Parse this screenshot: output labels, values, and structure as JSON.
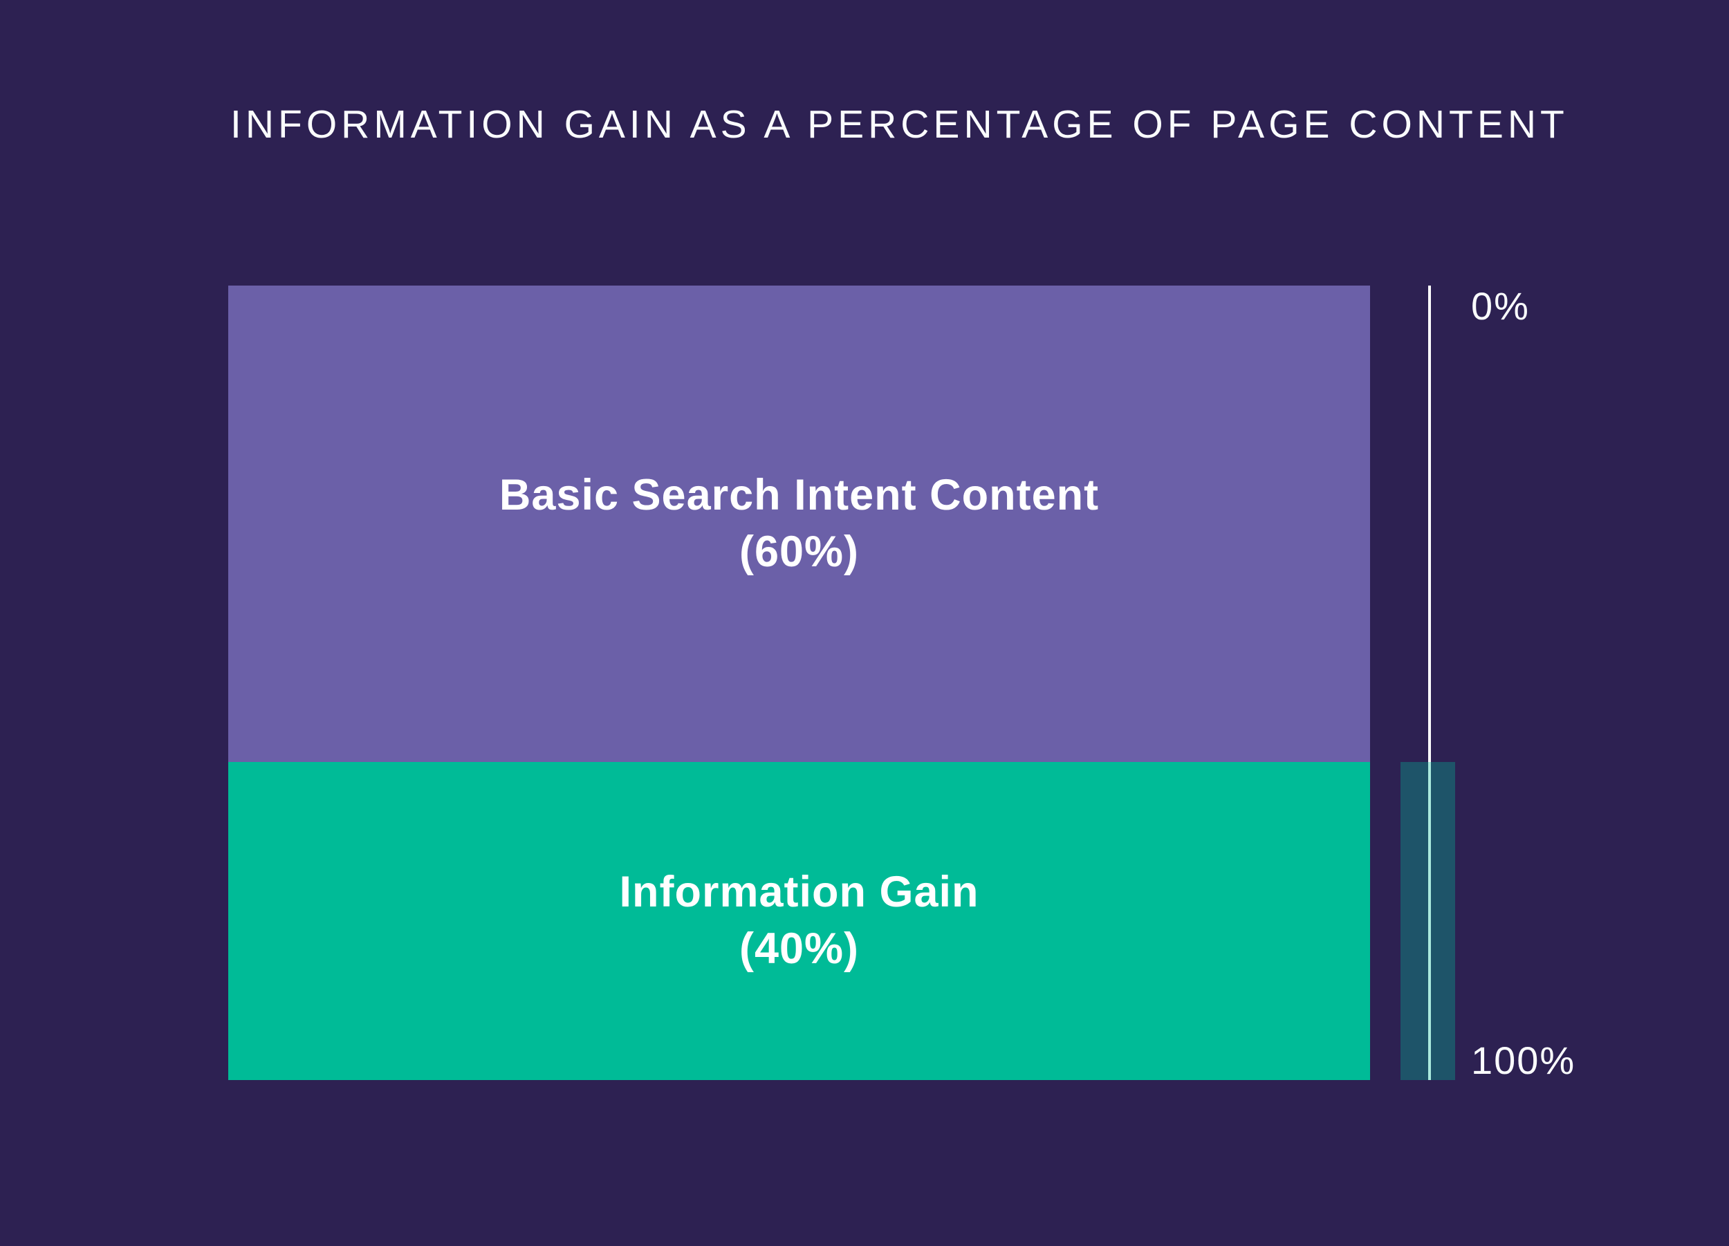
{
  "chart_data": {
    "type": "bar",
    "subtype": "100-percent-stacked-single-bar",
    "title": "INFORMATION GAIN AS A PERCENTAGE OF PAGE CONTENT",
    "xlabel": "",
    "ylabel": "",
    "legend": "none",
    "grid": false,
    "categories": [
      "Page Content"
    ],
    "segments": [
      {
        "label": "Basic Search Intent Content",
        "value": 60,
        "value_label": "(60%)",
        "color": "#6b60a8"
      },
      {
        "label": "Information Gain",
        "value": 40,
        "value_label": "(40%)",
        "color": "#00bb97"
      }
    ],
    "axis": {
      "position": "right",
      "orientation": "vertical",
      "range": [
        0,
        100
      ],
      "top_label": "0%",
      "bottom_label": "100%"
    },
    "highlight": {
      "segment": "Information Gain",
      "span_percent": [
        60,
        100
      ],
      "color": "rgba(0, 187, 151, 0.33)"
    }
  },
  "colors": {
    "background": "#2d2152",
    "text": "#fafcfd",
    "segment_text": "#ffffff",
    "axis_line": "#ffffff"
  }
}
